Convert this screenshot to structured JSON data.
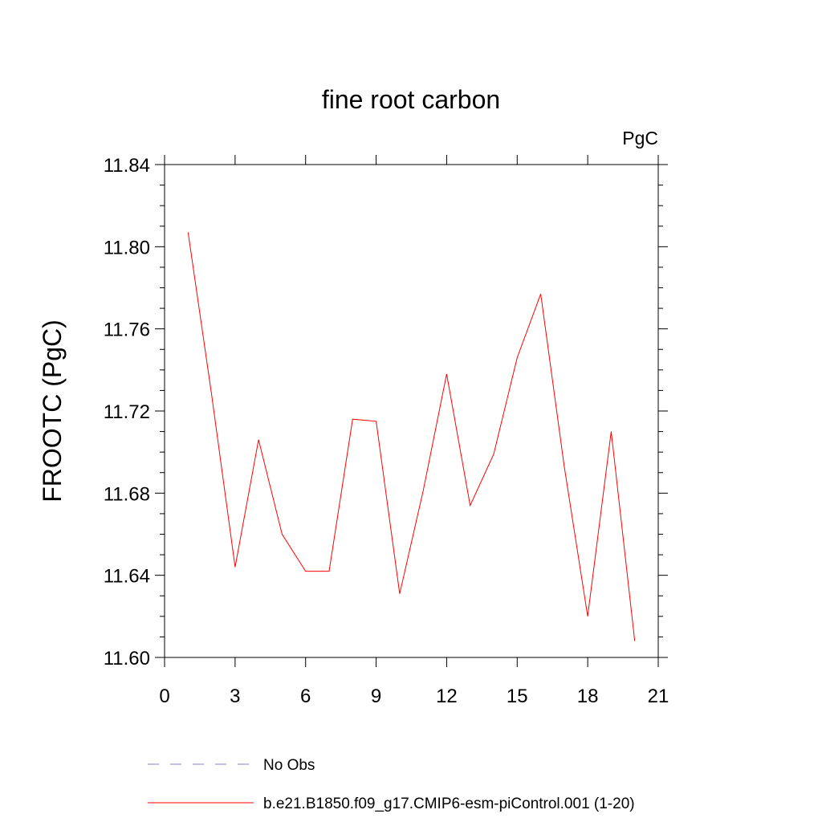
{
  "chart_data": {
    "type": "line",
    "title": "fine root carbon",
    "units_label": "PgC",
    "ylabel": "FROOTC  (PgC)",
    "xlabel": "",
    "xlim": [
      0,
      21
    ],
    "ylim": [
      11.6,
      11.84
    ],
    "xticks": [
      0,
      3,
      6,
      9,
      12,
      15,
      18,
      21
    ],
    "xtick_labels": [
      "0",
      "3",
      "6",
      "9",
      "12",
      "15",
      "18",
      "21"
    ],
    "yticks": [
      11.6,
      11.64,
      11.68,
      11.72,
      11.76,
      11.8,
      11.84
    ],
    "ytick_labels": [
      "11.60",
      "11.64",
      "11.68",
      "11.72",
      "11.76",
      "11.80",
      "11.84"
    ],
    "grid": false,
    "legend_placement": "bottom",
    "series": [
      {
        "name": "b.e21.B1850.f09_g17.CMIP6-esm-piControl.001 (1-20)",
        "color": "#ff0000",
        "dash": "solid",
        "x": [
          1,
          2,
          3,
          4,
          5,
          6,
          7,
          8,
          9,
          10,
          11,
          12,
          13,
          14,
          15,
          16,
          17,
          18,
          19,
          20
        ],
        "y": [
          11.807,
          11.728,
          11.644,
          11.706,
          11.66,
          11.642,
          11.642,
          11.716,
          11.715,
          11.631,
          11.681,
          11.738,
          11.674,
          11.699,
          11.746,
          11.777,
          11.693,
          11.62,
          11.71,
          11.608
        ]
      }
    ],
    "legend": [
      {
        "label": "No Obs",
        "color": "#8080c0",
        "dash": "dashed"
      },
      {
        "label": "b.e21.B1850.f09_g17.CMIP6-esm-piControl.001 (1-20)",
        "color": "#ff0000",
        "dash": "solid"
      }
    ]
  }
}
